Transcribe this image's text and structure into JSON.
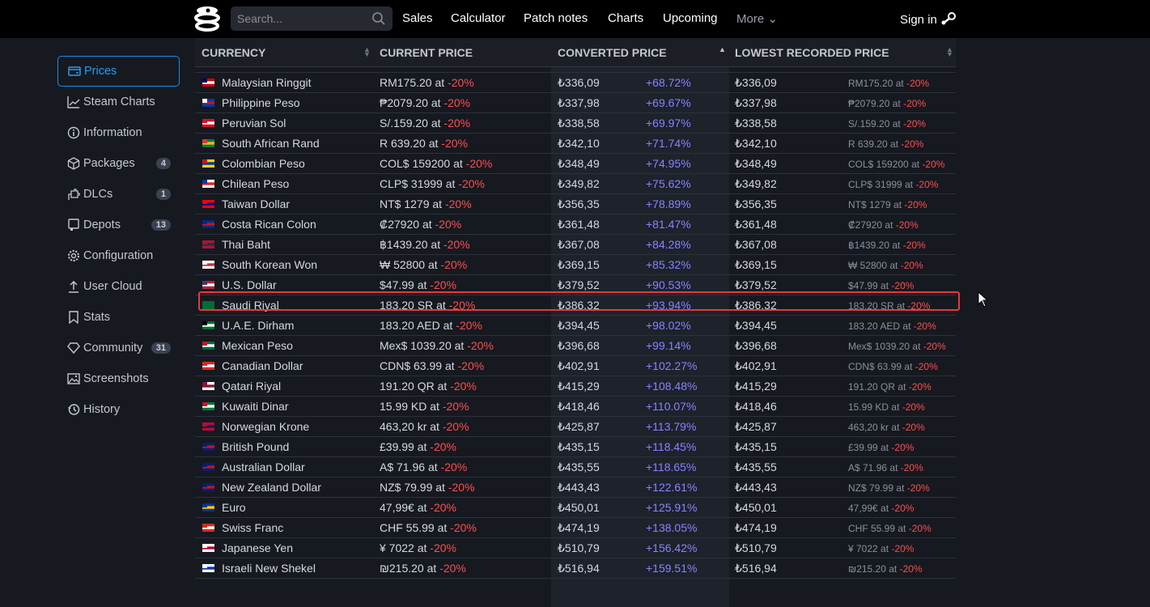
{
  "header": {
    "search_placeholder": "Search...",
    "nav": [
      "Sales",
      "Calculator",
      "Patch notes",
      "Charts",
      "Upcoming"
    ],
    "more": "More",
    "sign_in": "Sign in"
  },
  "sidebar": [
    {
      "label": "Prices",
      "icon": "wallet-icon",
      "active": true
    },
    {
      "label": "Steam Charts",
      "icon": "chart-line-icon"
    },
    {
      "label": "Information",
      "icon": "info-icon"
    },
    {
      "label": "Packages",
      "icon": "package-icon",
      "badge": "4"
    },
    {
      "label": "DLCs",
      "icon": "puzzle-icon",
      "badge": "1"
    },
    {
      "label": "Depots",
      "icon": "depot-icon",
      "badge": "13"
    },
    {
      "label": "Configuration",
      "icon": "gear-icon"
    },
    {
      "label": "User Cloud",
      "icon": "upload-icon"
    },
    {
      "label": "Stats",
      "icon": "bookmark-icon"
    },
    {
      "label": "Community",
      "icon": "diamond-icon",
      "badge": "31"
    },
    {
      "label": "Screenshots",
      "icon": "image-icon"
    },
    {
      "label": "History",
      "icon": "history-icon"
    }
  ],
  "table": {
    "headers": [
      "CURRENCY",
      "CURRENT PRICE",
      "CONVERTED PRICE",
      "LOWEST RECORDED PRICE"
    ],
    "sorted_column": "CONVERTED PRICE",
    "sort_direction": "ascending",
    "discount": "-20%",
    "at": "at",
    "highlighted_row": "U.S. Dollar",
    "rows": [
      {
        "currency": "Malaysian Ringgit",
        "flag": [
          "#cc0001",
          "#fff",
          "#010066"
        ],
        "price": "RM175.20",
        "converted": "₺336,09",
        "diff": "+68.72%",
        "lowest": "₺336,09",
        "lowest_price": "RM175.20"
      },
      {
        "currency": "Philippine Peso",
        "flag": [
          "#0038a8",
          "#ce1126",
          "#fff"
        ],
        "price": "₱2079.20",
        "converted": "₺337,98",
        "diff": "+69.67%",
        "lowest": "₺337,98",
        "lowest_price": "₱2079.20"
      },
      {
        "currency": "Peruvian Sol",
        "flag": [
          "#d91023",
          "#fff",
          "#d91023"
        ],
        "price": "S/.159.20",
        "converted": "₺338,58",
        "diff": "+69.97%",
        "lowest": "₺338,58",
        "lowest_price": "S/.159.20"
      },
      {
        "currency": "South African Rand",
        "flag": [
          "#007a4d",
          "#ffb612",
          "#de3831"
        ],
        "price": "R 639.20",
        "converted": "₺342,10",
        "diff": "+71.74%",
        "lowest": "₺342,10",
        "lowest_price": "R 639.20"
      },
      {
        "currency": "Colombian Peso",
        "flag": [
          "#fcd116",
          "#003893",
          "#ce1126"
        ],
        "price": "COL$ 159200",
        "converted": "₺348,49",
        "diff": "+74.95%",
        "lowest": "₺348,49",
        "lowest_price": "COL$ 159200"
      },
      {
        "currency": "Chilean Peso",
        "flag": [
          "#fff",
          "#d52b1e",
          "#0039a6"
        ],
        "price": "CLP$ 31999",
        "converted": "₺349,82",
        "diff": "+75.62%",
        "lowest": "₺349,82",
        "lowest_price": "CLP$ 31999"
      },
      {
        "currency": "Taiwan Dollar",
        "flag": [
          "#fe0000",
          "#000095",
          "#fe0000"
        ],
        "price": "NT$ 1279",
        "converted": "₺356,35",
        "diff": "+78.89%",
        "lowest": "₺356,35",
        "lowest_price": "NT$ 1279"
      },
      {
        "currency": "Costa Rican Colon",
        "flag": [
          "#002b7f",
          "#ce1126",
          "#002b7f"
        ],
        "price": "₡27920",
        "converted": "₺361,48",
        "diff": "+81.47%",
        "lowest": "₺361,48",
        "lowest_price": "₡27920"
      },
      {
        "currency": "Thai Baht",
        "flag": [
          "#a51931",
          "#2d2a4a",
          "#a51931"
        ],
        "price": "฿1439.20",
        "converted": "₺367,08",
        "diff": "+84.28%",
        "lowest": "₺367,08",
        "lowest_price": "฿1439.20"
      },
      {
        "currency": "South Korean Won",
        "flag": [
          "#fff",
          "#cd2e3a",
          "#fff"
        ],
        "price": "₩ 52800",
        "converted": "₺369,15",
        "diff": "+85.32%",
        "lowest": "₺369,15",
        "lowest_price": "₩ 52800"
      },
      {
        "currency": "U.S. Dollar",
        "flag": [
          "#b22234",
          "#fff",
          "#3c3b6e"
        ],
        "price": "$47.99",
        "converted": "₺379,52",
        "diff": "+90.53%",
        "lowest": "₺379,52",
        "lowest_price": "$47.99"
      },
      {
        "currency": "Saudi Riyal",
        "flag": [
          "#006c35",
          "#006c35",
          "#006c35"
        ],
        "price": "183.20 SR",
        "converted": "₺386,32",
        "diff": "+93.94%",
        "lowest": "₺386,32",
        "lowest_price": "183.20 SR"
      },
      {
        "currency": "U.A.E. Dirham",
        "flag": [
          "#00732f",
          "#fff",
          "#000"
        ],
        "price": "183.20 AED",
        "converted": "₺394,45",
        "diff": "+98.02%",
        "lowest": "₺394,45",
        "lowest_price": "183.20 AED"
      },
      {
        "currency": "Mexican Peso",
        "flag": [
          "#006847",
          "#fff",
          "#ce1126"
        ],
        "price": "Mex$ 1039.20",
        "converted": "₺396,68",
        "diff": "+99.14%",
        "lowest": "₺396,68",
        "lowest_price": "Mex$ 1039.20"
      },
      {
        "currency": "Canadian Dollar",
        "flag": [
          "#d52b1e",
          "#fff",
          "#d52b1e"
        ],
        "price": "CDN$ 63.99",
        "converted": "₺402,91",
        "diff": "+102.27%",
        "lowest": "₺402,91",
        "lowest_price": "CDN$ 63.99"
      },
      {
        "currency": "Qatari Riyal",
        "flag": [
          "#fff",
          "#8a1538",
          "#8a1538"
        ],
        "price": "191.20 QR",
        "converted": "₺415,29",
        "diff": "+108.48%",
        "lowest": "₺415,29",
        "lowest_price": "191.20 QR"
      },
      {
        "currency": "Kuwaiti Dinar",
        "flag": [
          "#007a3d",
          "#fff",
          "#ce1126"
        ],
        "price": "15.99 KD",
        "converted": "₺418,46",
        "diff": "+110.07%",
        "lowest": "₺418,46",
        "lowest_price": "15.99 KD"
      },
      {
        "currency": "Norwegian Krone",
        "flag": [
          "#ba0c2f",
          "#00205b",
          "#ba0c2f"
        ],
        "price": "463,20 kr",
        "converted": "₺425,87",
        "diff": "+113.79%",
        "lowest": "₺425,87",
        "lowest_price": "463,20 kr"
      },
      {
        "currency": "British Pound",
        "flag": [
          "#012169",
          "#c8102e",
          "#012169"
        ],
        "price": "£39.99",
        "converted": "₺435,15",
        "diff": "+118.45%",
        "lowest": "₺435,15",
        "lowest_price": "£39.99"
      },
      {
        "currency": "Australian Dollar",
        "flag": [
          "#012169",
          "#c8102e",
          "#012169"
        ],
        "price": "A$ 71.96",
        "converted": "₺435,55",
        "diff": "+118.65%",
        "lowest": "₺435,55",
        "lowest_price": "A$ 71.96"
      },
      {
        "currency": "New Zealand Dollar",
        "flag": [
          "#012169",
          "#c8102e",
          "#012169"
        ],
        "price": "NZ$ 79.99",
        "converted": "₺443,43",
        "diff": "+122.61%",
        "lowest": "₺443,43",
        "lowest_price": "NZ$ 79.99"
      },
      {
        "currency": "Euro",
        "flag": [
          "#003399",
          "#ffcc00",
          "#003399"
        ],
        "price": "47,99€",
        "converted": "₺450,01",
        "diff": "+125.91%",
        "lowest": "₺450,01",
        "lowest_price": "47,99€"
      },
      {
        "currency": "Swiss Franc",
        "flag": [
          "#d52b1e",
          "#fff",
          "#d52b1e"
        ],
        "price": "CHF 55.99",
        "converted": "₺474,19",
        "diff": "+138.05%",
        "lowest": "₺474,19",
        "lowest_price": "CHF 55.99"
      },
      {
        "currency": "Japanese Yen",
        "flag": [
          "#fff",
          "#bc002d",
          "#fff"
        ],
        "price": "¥ 7022",
        "converted": "₺510,79",
        "diff": "+156.42%",
        "lowest": "₺510,79",
        "lowest_price": "¥ 7022"
      },
      {
        "currency": "Israeli New Shekel",
        "flag": [
          "#fff",
          "#0038b8",
          "#fff"
        ],
        "price": "₪215.20",
        "converted": "₺516,94",
        "diff": "+159.51%",
        "lowest": "₺516,94",
        "lowest_price": "₪215.20"
      }
    ]
  }
}
